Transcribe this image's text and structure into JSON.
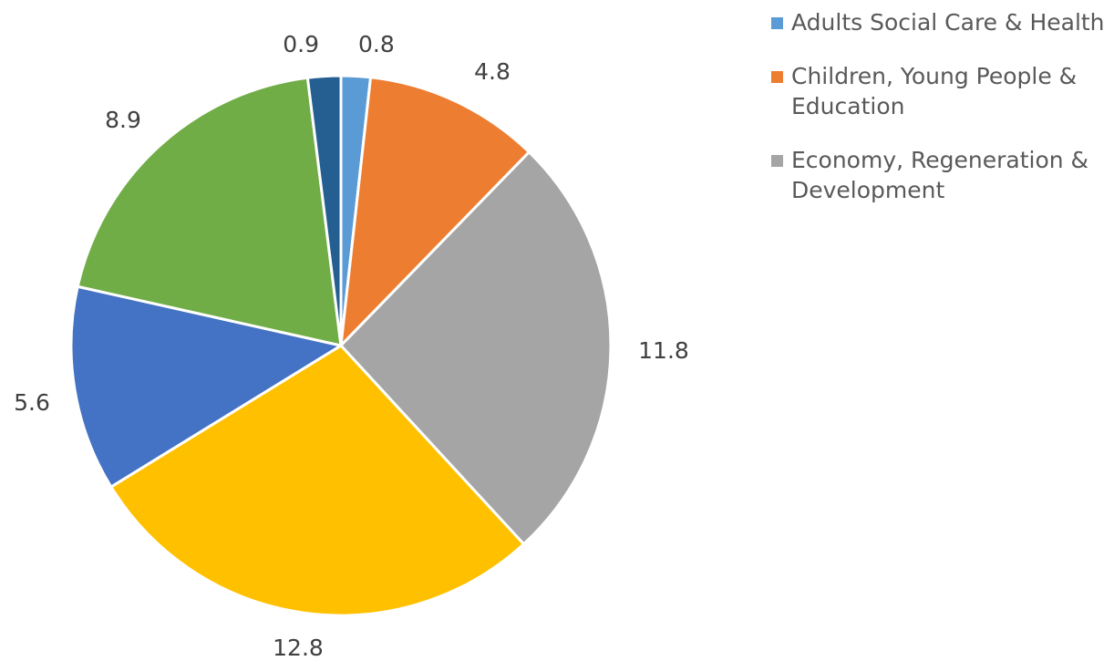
{
  "chart_data": {
    "type": "pie",
    "title": "",
    "start_angle_deg": 0,
    "direction": "clockwise",
    "slices": [
      {
        "value": 0.8,
        "label": "0.8",
        "legend": "Adults Social Care & Health",
        "color": "#5B9BD5"
      },
      {
        "value": 4.8,
        "label": "4.8",
        "legend": "Children, Young People & Education",
        "color": "#ED7D31"
      },
      {
        "value": 11.8,
        "label": "11.8",
        "legend": "Economy, Regeneration & Development",
        "color": "#A5A5A5"
      },
      {
        "value": 12.8,
        "label": "12.8",
        "color": "#FFC000"
      },
      {
        "value": 5.6,
        "label": "5.6",
        "color": "#4472C4"
      },
      {
        "value": 8.9,
        "label": "8.9",
        "color": "#70AD47"
      },
      {
        "value": 0.9,
        "label": "0.9",
        "color": "#255E91"
      }
    ],
    "legend_position": "top-right"
  }
}
